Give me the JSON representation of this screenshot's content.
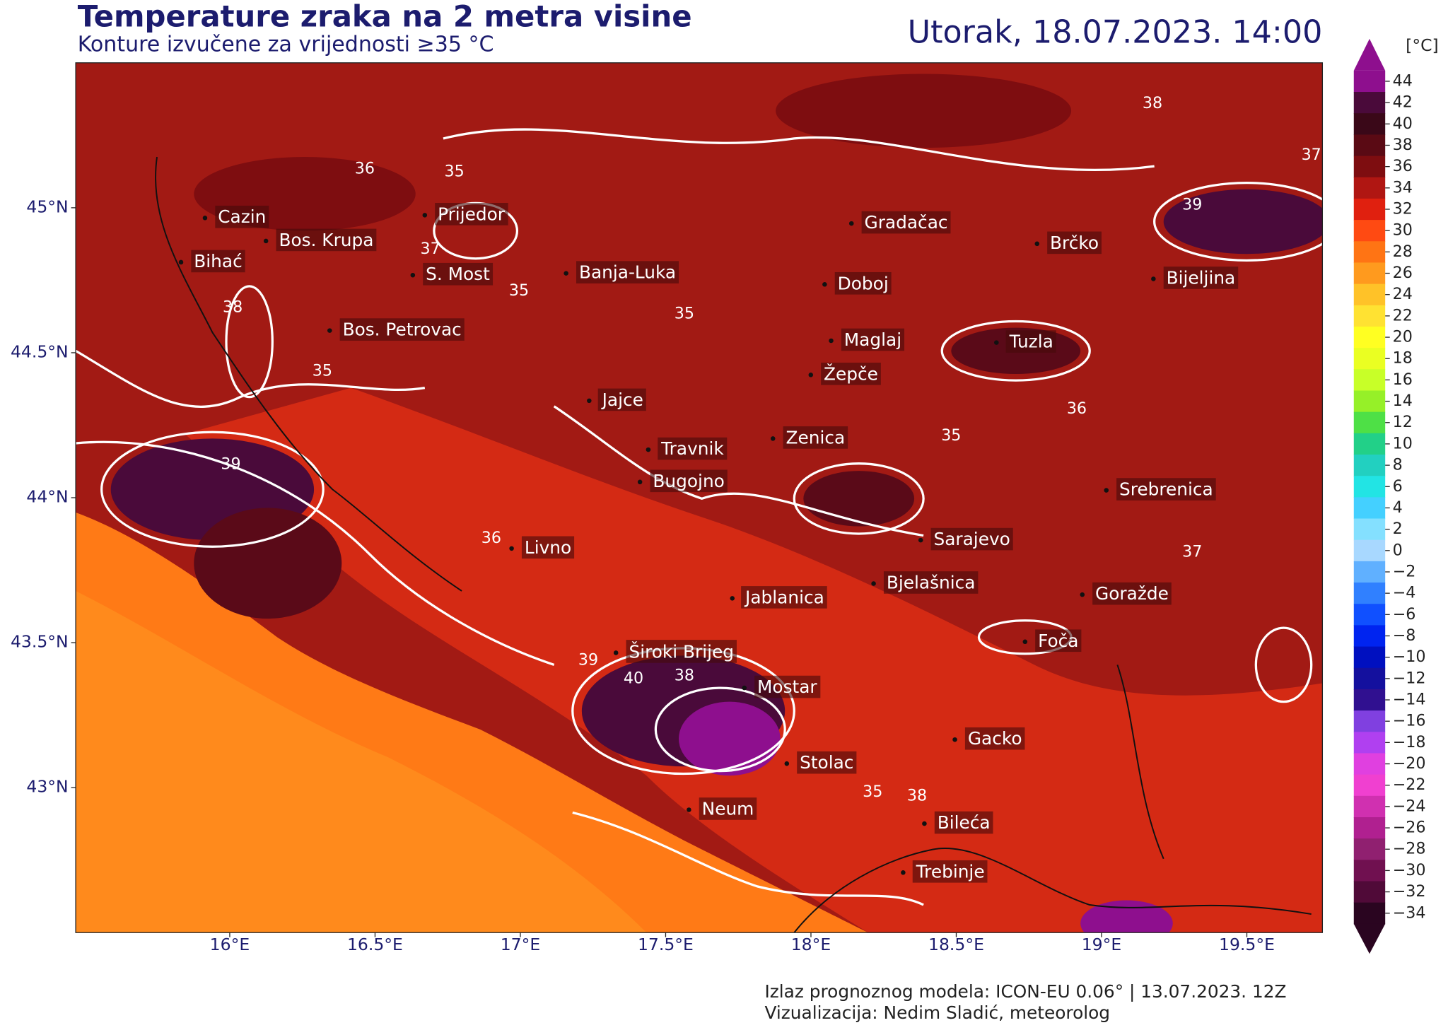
{
  "header": {
    "title": "Temperature zraka na 2 metra visine",
    "subtitle": "Konture izvučene za vrijednosti ≥35 °C",
    "datetime": "Utorak, 18.07.2023. 14:00"
  },
  "map": {
    "lon_range": [
      15.47,
      19.76
    ],
    "lat_range": [
      42.5,
      45.5
    ],
    "lon_ticks": [
      {
        "value": 16,
        "label": "16°E"
      },
      {
        "value": 16.5,
        "label": "16.5°E"
      },
      {
        "value": 17,
        "label": "17°E"
      },
      {
        "value": 17.5,
        "label": "17.5°E"
      },
      {
        "value": 18,
        "label": "18°E"
      },
      {
        "value": 18.5,
        "label": "18.5°E"
      },
      {
        "value": 19,
        "label": "19°E"
      },
      {
        "value": 19.5,
        "label": "19.5°E"
      }
    ],
    "lat_ticks": [
      {
        "value": 45,
        "label": "45°N"
      },
      {
        "value": 44.5,
        "label": "44.5°N"
      },
      {
        "value": 44,
        "label": "44°N"
      },
      {
        "value": 43.5,
        "label": "43.5°N"
      },
      {
        "value": 43,
        "label": "43°N"
      }
    ],
    "cities": [
      "Cazin",
      "Bos. Krupa",
      "Bihać",
      "Prijedor",
      "S. Most",
      "Banja-Luka",
      "Bos. Petrovac",
      "Gradačac",
      "Brčko",
      "Bijeljina",
      "Doboj",
      "Maglaj",
      "Tuzla",
      "Žepče",
      "Jajce",
      "Travnik",
      "Zenica",
      "Bugojno",
      "Srebrenica",
      "Sarajevo",
      "Livno",
      "Bjelašnica",
      "Jablanica",
      "Goražde",
      "Foča",
      "Široki Brijeg",
      "Mostar",
      "Gacko",
      "Stolac",
      "Neum",
      "Bileća",
      "Trebinje"
    ],
    "contour_labels": [
      35,
      36,
      37,
      38,
      39,
      39,
      38,
      37,
      35,
      36,
      40,
      39,
      38,
      35,
      38,
      37,
      36,
      35,
      35,
      35
    ]
  },
  "colorbar": {
    "unit": "[°C]",
    "ticks": [
      44,
      42,
      40,
      38,
      36,
      34,
      32,
      30,
      28,
      26,
      24,
      22,
      20,
      18,
      16,
      14,
      12,
      10,
      8,
      6,
      4,
      2,
      0,
      {
        "value": -2,
        "label": "−2"
      },
      {
        "value": -4,
        "label": "−4"
      },
      {
        "value": -6,
        "label": "−6"
      },
      {
        "value": -8,
        "label": "−8"
      },
      {
        "value": -10,
        "label": "−10"
      },
      {
        "value": -12,
        "label": "−12"
      },
      {
        "value": -14,
        "label": "−14"
      },
      {
        "value": -16,
        "label": "−16"
      },
      {
        "value": -18,
        "label": "−18"
      },
      {
        "value": -20,
        "label": "−20"
      },
      {
        "value": -22,
        "label": "−22"
      },
      {
        "value": -24,
        "label": "−24"
      },
      {
        "value": -26,
        "label": "−26"
      },
      {
        "value": -28,
        "label": "−28"
      },
      {
        "value": -30,
        "label": "−30"
      },
      {
        "value": -32,
        "label": "−32"
      },
      {
        "value": -34,
        "label": "−34"
      }
    ],
    "colors": [
      "#8e0f8e",
      "#4a0a3a",
      "#3a0818",
      "#5a0a14",
      "#7e0d10",
      "#b01612",
      "#e0200f",
      "#ff4a12",
      "#ff7414",
      "#ff9a1e",
      "#ffc228",
      "#ffe232",
      "#ffff22",
      "#eaff22",
      "#c8ff28",
      "#96f028",
      "#4ee046",
      "#22d088",
      "#22d0c0",
      "#22e4e4",
      "#44d0ff",
      "#84e0ff",
      "#a8d8ff",
      "#60b0ff",
      "#3080ff",
      "#1050ff",
      "#0024f0",
      "#0010c0",
      "#14109e",
      "#301090",
      "#8040e0",
      "#b040f0",
      "#e040e0",
      "#f040d0",
      "#d030b0",
      "#b02090",
      "#902070",
      "#701050",
      "#500a38",
      "#2a0520"
    ]
  },
  "footer": {
    "model": "Izlaz prognoznog modela: ICON-EU 0.06° | 13.07.2023. 12Z",
    "credit": "Vizualizacija: Nedim Sladić, meteorolog"
  }
}
